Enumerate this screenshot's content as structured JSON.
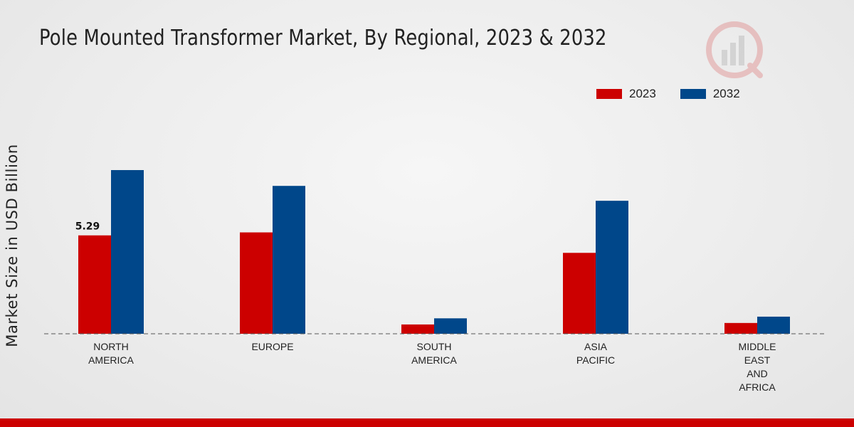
{
  "chart_data": {
    "type": "bar",
    "title": "Pole Mounted Transformer Market, By Regional, 2023 & 2032",
    "ylabel": "Market Size in USD Billion",
    "xlabel": "",
    "categories": [
      [
        "NORTH",
        "AMERICA"
      ],
      [
        "EUROPE"
      ],
      [
        "SOUTH",
        "AMERICA"
      ],
      [
        "ASIA",
        "PACIFIC"
      ],
      [
        "MIDDLE",
        "EAST",
        "AND",
        "AFRICA"
      ]
    ],
    "series": [
      {
        "name": "2023",
        "color": "#cc0000",
        "values": [
          5.29,
          5.45,
          0.5,
          4.35,
          0.58
        ]
      },
      {
        "name": "2032",
        "color": "#00478a",
        "values": [
          8.8,
          7.95,
          0.83,
          7.15,
          0.92
        ]
      }
    ],
    "data_labels": [
      {
        "series": 0,
        "index": 0,
        "text": "5.29"
      }
    ],
    "ylim": [
      0,
      14.5
    ],
    "grid": false,
    "legend_position": "top-right"
  }
}
